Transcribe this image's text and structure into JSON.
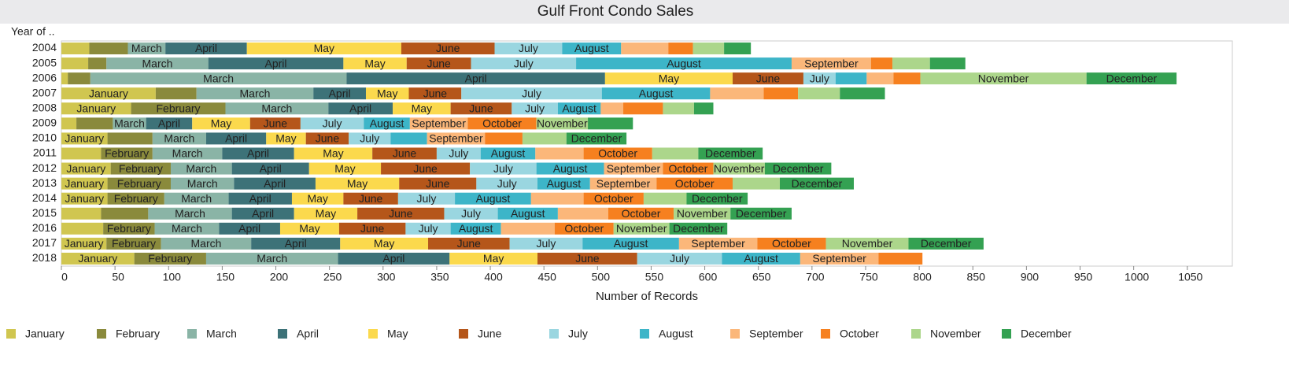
{
  "chart_data": {
    "type": "stacked-barh",
    "title": "Gulf Front Condo Sales",
    "y_label": "Year of ..",
    "x_label": "Number of Records",
    "categories": [
      "2004",
      "2005",
      "2006",
      "2007",
      "2008",
      "2009",
      "2010",
      "2011",
      "2012",
      "2013",
      "2014",
      "2015",
      "2016",
      "2017",
      "2018"
    ],
    "series": [
      {
        "name": "January",
        "color": "#d0c650",
        "values": [
          26,
          25,
          6,
          88,
          65,
          14,
          43,
          37,
          46,
          43,
          43,
          37,
          39,
          42,
          68
        ]
      },
      {
        "name": "February",
        "color": "#8a8a3c",
        "values": [
          36,
          17,
          21,
          38,
          88,
          34,
          42,
          48,
          56,
          59,
          53,
          44,
          48,
          51,
          67
        ]
      },
      {
        "name": "March",
        "color": "#8ab4a6",
        "values": [
          35,
          95,
          239,
          109,
          96,
          31,
          50,
          65,
          57,
          59,
          60,
          78,
          60,
          84,
          123
        ]
      },
      {
        "name": "April",
        "color": "#3d7278",
        "values": [
          76,
          126,
          241,
          49,
          60,
          43,
          56,
          67,
          72,
          76,
          59,
          58,
          57,
          83,
          104
        ]
      },
      {
        "name": "May",
        "color": "#fbd94d",
        "values": [
          144,
          59,
          119,
          40,
          54,
          54,
          37,
          73,
          67,
          78,
          48,
          59,
          55,
          82,
          82
        ]
      },
      {
        "name": "June",
        "color": "#b5561a",
        "values": [
          87,
          60,
          66,
          49,
          57,
          47,
          40,
          60,
          83,
          72,
          51,
          81,
          62,
          76,
          93
        ]
      },
      {
        "name": "July",
        "color": "#9ad6e0",
        "values": [
          63,
          98,
          30,
          131,
          43,
          59,
          39,
          41,
          62,
          57,
          53,
          50,
          42,
          68,
          79
        ]
      },
      {
        "name": "August",
        "color": "#3db5c8",
        "values": [
          55,
          201,
          29,
          101,
          40,
          43,
          34,
          51,
          63,
          49,
          71,
          56,
          47,
          90,
          73
        ]
      },
      {
        "name": "September",
        "color": "#fbb77a",
        "values": [
          44,
          74,
          25,
          50,
          21,
          54,
          54,
          45,
          55,
          62,
          49,
          47,
          50,
          73,
          73
        ]
      },
      {
        "name": "October",
        "color": "#f6801f",
        "values": [
          23,
          20,
          25,
          32,
          37,
          64,
          35,
          64,
          47,
          71,
          56,
          61,
          55,
          64,
          41
        ]
      },
      {
        "name": "November",
        "color": "#acd68b",
        "values": [
          29,
          35,
          155,
          39,
          29,
          48,
          41,
          43,
          48,
          44,
          40,
          53,
          52,
          77,
          null
        ]
      },
      {
        "name": "December",
        "color": "#34a152",
        "values": [
          25,
          33,
          84,
          42,
          18,
          42,
          56,
          60,
          62,
          69,
          57,
          57,
          54,
          70,
          null
        ]
      }
    ],
    "xlim": [
      0,
      1092
    ],
    "xticks": [
      0,
      50,
      100,
      150,
      200,
      250,
      300,
      350,
      400,
      450,
      500,
      550,
      600,
      650,
      700,
      750,
      800,
      850,
      900,
      950,
      1000,
      1050
    ]
  }
}
